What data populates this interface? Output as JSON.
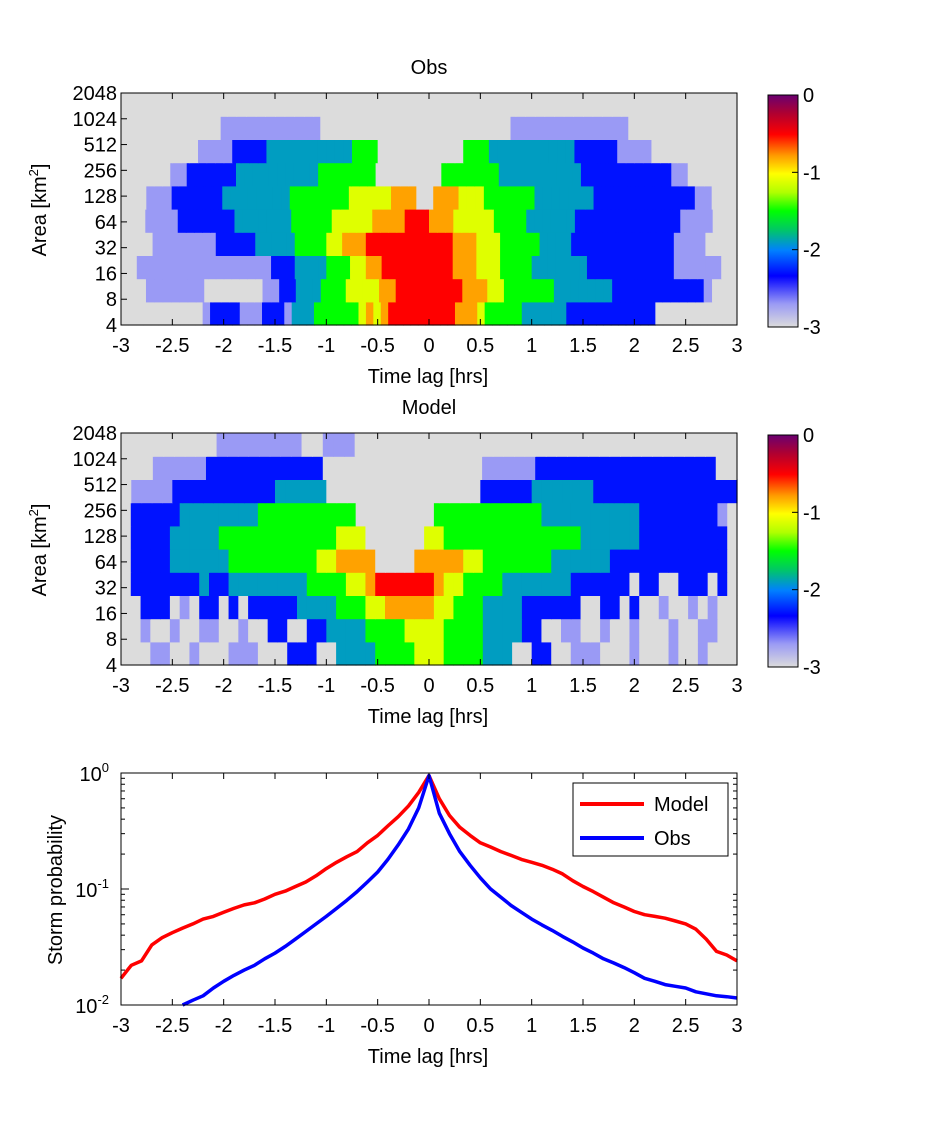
{
  "chart_data": [
    {
      "type": "heatmap",
      "title": "Obs",
      "xlabel": "Time lag [hrs]",
      "ylabel_main": "Area [km",
      "ylabel_sup": "2",
      "ylabel_tail": "]",
      "xlim": [
        -3,
        3
      ],
      "x_ticks": [
        "-3",
        "-2.5",
        "-2",
        "-1.5",
        "-1",
        "-0.5",
        "0",
        "0.5",
        "1",
        "1.5",
        "2",
        "2.5",
        "3"
      ],
      "y_ticks": [
        "4",
        "8",
        "16",
        "32",
        "64",
        "128",
        "256",
        "512",
        "1024",
        "2048"
      ],
      "y_scale": "log2",
      "colorbar": {
        "range": [
          -3,
          0
        ],
        "ticks": [
          "0",
          "-1",
          "-2",
          "-3"
        ],
        "colormap": "jet-like, light gray at -3"
      },
      "grid_rows_bottom_to_top": [
        "           oggggooogggofffeeeeeedcdcbbbbbbbbbcccdeeeeeffffffgggggggggggg           ",
        "   ooooooo       ooggfffeeeddddccbbbbbbbbcccddeeeeeefffffffgggggggggggo   ",
        "  ooooooooooooooooogggffffeeeddccbbbbbbbbbcccdddeeeefffffffgggggggggggoooooo  ",
        "    oooooooogggggfffffeeeeddcccbbbbbbbbbbbcccdddeeeeeffffgggggggggggggoooo    ",
        "   oooogggggggfffffffeeeeedddddccccbbbcccdddddeeeeffffffgggggggggggggoooo   ",
        "   oooggggggffffffffeeeeeeedddddccc  cccdddeeeeeefffffffggggggggggggoo   ",
        "      ooggggggffffffffffeeeeeee        eeeeeeeffffffffffgggggggggggoo      ",
        "         ooooggggffffffffffeee          eeeffffffffffgggggoooo          ",
        "           ooooooooooo                     ooooooooooooo            ",
        "                                                                "
      ],
      "legend_note": "each character encodes a bin value: b=-0.5 c=-0.8 d=-1.1 e=-1.5 f=-1.9 g=-2.3 o=-2.7 space=-3"
    },
    {
      "type": "heatmap",
      "title": "Model",
      "xlabel": "Time lag [hrs]",
      "ylabel_main": "Area [km",
      "ylabel_sup": "2",
      "ylabel_tail": "]",
      "xlim": [
        -3,
        3
      ],
      "x_ticks": [
        "-3",
        "-2.5",
        "-2",
        "-1.5",
        "-1",
        "-0.5",
        "0",
        "0.5",
        "1",
        "1.5",
        "2",
        "2.5",
        "3"
      ],
      "y_ticks": [
        "4",
        "8",
        "16",
        "32",
        "64",
        "128",
        "256",
        "512",
        "1024",
        "2048"
      ],
      "y_scale": "log2",
      "colorbar": {
        "range": [
          -3,
          0
        ],
        "ticks": [
          "0",
          "-1",
          "-2",
          "-3"
        ],
        "colormap": "jet-like, light gray at -3"
      },
      "grid_rows_bottom_to_top": [
        "   oo  o   ooo   ggg  ffffeeeedddeeeefff  gg  ooo   o   o  o   ",
        "  o  o  oo  o  gg  ggffffeeeeddddeeeeffffgg  oo  o  o   o  oo  ",
        "  ggg o gg g gggggffffeeeddcccccddeeeffffgggggg  gg g  o  o o  ",
        " gggggggfggffffffffeeeeddcbbbbbbcddeeeefffffffgggggg gg  ggg g ",
        " ggggffffffeeeeeeeeeddcccc    cccccddeeeeeeeffffffgggggggggggg ",
        " ggggfffffeeeeeeeeeeeeddd      ddeeeeeeeeeeeeeeffffffggggggggg ",
        " gggggffffffffeeeeeeeeee        eeeeeeeeeeeffffffffffggggggggo ",
        " ooooggggggggggfffff               gggggffffffgggggggggggggg",
        "   oooooggggggggggg               oooooggggggggggggggggg  ",
        "         oooooooo  ooo                                    "
      ],
      "legend_note": "each character encodes a bin value: b=-0.5 c=-0.8 d=-1.1 e=-1.5 f=-1.9 g=-2.3 o=-2.7 space=-3"
    },
    {
      "type": "line",
      "xlabel": "Time lag [hrs]",
      "ylabel": "Storm probability",
      "xlim": [
        -3,
        3
      ],
      "y_scale": "log",
      "ylim": [
        0.01,
        1
      ],
      "x_ticks": [
        "-3",
        "-2.5",
        "-2",
        "-1.5",
        "-1",
        "-0.5",
        "0",
        "0.5",
        "1",
        "1.5",
        "2",
        "2.5",
        "3"
      ],
      "y_ticks": [
        {
          "base": "10",
          "exp": "0",
          "value": 1
        },
        {
          "base": "10",
          "exp": "-1",
          "value": 0.1
        },
        {
          "base": "10",
          "exp": "-2",
          "value": 0.01
        }
      ],
      "legend_position": "top-right",
      "series": [
        {
          "name": "Model",
          "color": "#ff0000",
          "x": [
            -3,
            -2.9,
            -2.8,
            -2.7,
            -2.6,
            -2.5,
            -2.4,
            -2.3,
            -2.2,
            -2.1,
            -2,
            -1.9,
            -1.8,
            -1.7,
            -1.6,
            -1.5,
            -1.4,
            -1.3,
            -1.2,
            -1.1,
            -1,
            -0.9,
            -0.8,
            -0.7,
            -0.6,
            -0.5,
            -0.4,
            -0.3,
            -0.2,
            -0.1,
            0,
            0.1,
            0.2,
            0.3,
            0.4,
            0.5,
            0.6,
            0.7,
            0.8,
            0.9,
            1,
            1.1,
            1.2,
            1.3,
            1.4,
            1.5,
            1.6,
            1.7,
            1.8,
            1.9,
            2,
            2.1,
            2.2,
            2.3,
            2.4,
            2.5,
            2.6,
            2.7,
            2.8,
            2.9,
            3
          ],
          "y": [
            0.017,
            0.022,
            0.024,
            0.033,
            0.038,
            0.042,
            0.046,
            0.05,
            0.055,
            0.058,
            0.063,
            0.068,
            0.073,
            0.076,
            0.082,
            0.09,
            0.096,
            0.105,
            0.115,
            0.13,
            0.15,
            0.17,
            0.19,
            0.21,
            0.25,
            0.29,
            0.35,
            0.42,
            0.52,
            0.68,
            0.95,
            0.6,
            0.43,
            0.34,
            0.29,
            0.25,
            0.23,
            0.21,
            0.195,
            0.18,
            0.17,
            0.16,
            0.148,
            0.135,
            0.118,
            0.105,
            0.095,
            0.085,
            0.076,
            0.07,
            0.064,
            0.06,
            0.058,
            0.056,
            0.053,
            0.05,
            0.045,
            0.037,
            0.029,
            0.027,
            0.024
          ]
        },
        {
          "name": "Obs",
          "color": "#0000ff",
          "x": [
            -2.4,
            -2.3,
            -2.2,
            -2.1,
            -2,
            -1.9,
            -1.8,
            -1.7,
            -1.6,
            -1.5,
            -1.4,
            -1.3,
            -1.2,
            -1.1,
            -1,
            -0.9,
            -0.8,
            -0.7,
            -0.6,
            -0.5,
            -0.4,
            -0.3,
            -0.2,
            -0.1,
            0,
            0.1,
            0.2,
            0.3,
            0.4,
            0.5,
            0.6,
            0.7,
            0.8,
            0.9,
            1,
            1.1,
            1.2,
            1.3,
            1.4,
            1.5,
            1.6,
            1.7,
            1.8,
            1.9,
            2,
            2.1,
            2.2,
            2.3,
            2.4,
            2.5,
            2.6,
            2.7,
            2.8,
            2.9,
            3
          ],
          "y": [
            0.01,
            0.011,
            0.012,
            0.014,
            0.016,
            0.018,
            0.02,
            0.022,
            0.025,
            0.028,
            0.032,
            0.037,
            0.043,
            0.05,
            0.058,
            0.068,
            0.08,
            0.095,
            0.115,
            0.14,
            0.18,
            0.24,
            0.33,
            0.5,
            0.95,
            0.45,
            0.3,
            0.21,
            0.16,
            0.125,
            0.1,
            0.085,
            0.072,
            0.063,
            0.055,
            0.049,
            0.044,
            0.039,
            0.035,
            0.031,
            0.028,
            0.025,
            0.023,
            0.021,
            0.019,
            0.017,
            0.016,
            0.015,
            0.0145,
            0.014,
            0.013,
            0.0125,
            0.012,
            0.0118,
            0.0115
          ]
        }
      ]
    }
  ]
}
